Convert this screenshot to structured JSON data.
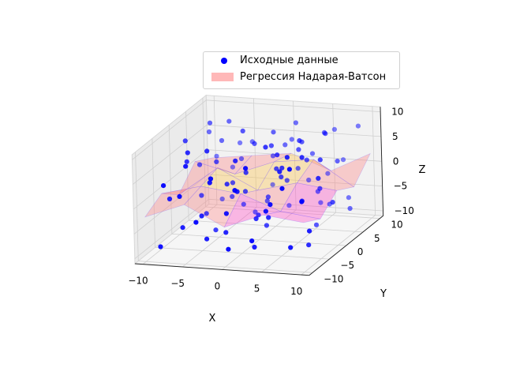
{
  "chart_data": {
    "type": "scatter3d+surface",
    "xlabel": "X",
    "ylabel": "Y",
    "zlabel": "Z",
    "xticks": [
      -10,
      -5,
      0,
      5,
      10
    ],
    "yticks": [
      -10,
      -5,
      0,
      5,
      10
    ],
    "zticks": [
      -10,
      -5,
      0,
      5,
      10
    ],
    "xlim": [
      -11,
      11
    ],
    "ylim": [
      -11,
      11
    ],
    "zlim": [
      -11,
      11
    ],
    "grid": true,
    "legend_placement": "upper-right",
    "legend": [
      {
        "label": "Исходные данные",
        "marker": "dot",
        "color": "#0000ff"
      },
      {
        "label": "Регрессия Надарая-Ватсон",
        "marker": "patch",
        "color": "#ff0000"
      }
    ],
    "series": [
      {
        "kind": "scatter",
        "color": "#0000ff",
        "points": [
          [
            -9,
            -8,
            -9
          ],
          [
            -7,
            -6,
            -6
          ],
          [
            -8,
            2,
            -4
          ],
          [
            -6,
            -9,
            2
          ],
          [
            -9,
            7,
            6
          ],
          [
            -5,
            -3,
            8
          ],
          [
            -4,
            5,
            -7
          ],
          [
            -3,
            -7,
            4
          ],
          [
            -6,
            6,
            9
          ],
          [
            -2,
            9,
            -5
          ],
          [
            -1,
            -4,
            7
          ],
          [
            -2,
            1,
            -2
          ],
          [
            0,
            -9,
            -8
          ],
          [
            1,
            6,
            5
          ],
          [
            2,
            -2,
            9
          ],
          [
            3,
            8,
            -3
          ],
          [
            2,
            -6,
            -9
          ],
          [
            4,
            3,
            6
          ],
          [
            5,
            -8,
            1
          ],
          [
            6,
            7,
            -7
          ],
          [
            7,
            -3,
            8
          ],
          [
            8,
            5,
            3
          ],
          [
            9,
            -6,
            -5
          ],
          [
            9,
            9,
            8
          ],
          [
            -8,
            -2,
            5
          ],
          [
            -3,
            3,
            9
          ],
          [
            0,
            0,
            -6
          ],
          [
            3,
            -4,
            -4
          ],
          [
            5,
            1,
            9
          ],
          [
            7,
            9,
            1
          ],
          [
            -7,
            9,
            -2
          ],
          [
            -4,
            -9,
            -3
          ],
          [
            1,
            -9,
            4
          ],
          [
            4,
            9,
            -8
          ],
          [
            8,
            -9,
            9
          ],
          [
            -9,
            4,
            1
          ],
          [
            -1,
            7,
            2
          ],
          [
            6,
            -1,
            -2
          ],
          [
            -5,
            -1,
            -9
          ],
          [
            2,
            4,
            -1
          ],
          [
            -6,
            2,
            3
          ],
          [
            0,
            5,
            8
          ],
          [
            3,
            0,
            2
          ],
          [
            6,
            3,
            -9
          ],
          [
            9,
            1,
            -3
          ],
          [
            -2,
            -9,
            6
          ],
          [
            5,
            6,
            -4
          ],
          [
            -8,
            8,
            -8
          ],
          [
            1,
            2,
            7
          ],
          [
            7,
            -7,
            -8
          ],
          [
            -4,
            8,
            4
          ],
          [
            4,
            -2,
            5
          ],
          [
            -9,
            -5,
            -1
          ],
          [
            8,
            8,
            -6
          ],
          [
            -1,
            -1,
            3
          ],
          [
            2,
            7,
            9
          ],
          [
            -7,
            -4,
            8
          ],
          [
            5,
            -5,
            6
          ],
          [
            -3,
            6,
            -9
          ],
          [
            0,
            -6,
            2
          ],
          [
            9,
            -3,
            4
          ],
          [
            -5,
            4,
            -5
          ],
          [
            3,
            5,
            1
          ],
          [
            6,
            9,
            7
          ],
          [
            -8,
            5,
            9
          ],
          [
            -2,
            -5,
            -7
          ],
          [
            7,
            2,
            -1
          ],
          [
            1,
            -3,
            -5
          ],
          [
            4,
            7,
            3
          ],
          [
            -6,
            -7,
            7
          ],
          [
            8,
            0,
            6
          ],
          [
            -4,
            2,
            -1
          ],
          [
            0,
            9,
            -9
          ],
          [
            2,
            -8,
            8
          ],
          [
            -9,
            0,
            8
          ],
          [
            5,
            3,
            4
          ],
          [
            -1,
            -7,
            -2
          ],
          [
            9,
            6,
            -7
          ],
          [
            -5,
            7,
            1
          ],
          [
            3,
            -9,
            -6
          ],
          [
            6,
            -5,
            9
          ],
          [
            -7,
            1,
            -7
          ],
          [
            1,
            8,
            5
          ],
          [
            -3,
            -2,
            1
          ],
          [
            7,
            4,
            9
          ],
          [
            4,
            -7,
            -1
          ],
          [
            -6,
            9,
            3
          ],
          [
            0,
            3,
            -4
          ],
          [
            8,
            -4,
            -9
          ],
          [
            -2,
            4,
            6
          ],
          [
            5,
            9,
            -2
          ],
          [
            -8,
            -9,
            4
          ],
          [
            2,
            1,
            3
          ],
          [
            6,
            6,
            8
          ],
          [
            -4,
            -6,
            -8
          ],
          [
            9,
            -8,
            2
          ],
          [
            -1,
            5,
            -6
          ],
          [
            3,
            -1,
            7
          ],
          [
            -9,
            9,
            0
          ],
          [
            7,
            -9,
            5
          ],
          [
            -5,
            -5,
            -4
          ],
          [
            1,
            0,
            -8
          ],
          [
            4,
            4,
            7
          ],
          [
            -7,
            6,
            5
          ]
        ]
      },
      {
        "kind": "surface",
        "name": "",
        "colormap": "spring",
        "alpha": 0.35,
        "x": [
          -10,
          -5,
          0,
          5,
          10
        ],
        "y": [
          -10,
          -5,
          0,
          5,
          10
        ],
        "z": [
          [
            -2,
            1,
            -3,
            0,
            -1
          ],
          [
            0,
            2,
            1,
            -2,
            -3
          ],
          [
            -3,
            3,
            -1,
            1,
            0
          ],
          [
            1,
            -1,
            2,
            3,
            -2
          ],
          [
            -1,
            0,
            1,
            -2,
            2
          ]
        ]
      }
    ]
  }
}
